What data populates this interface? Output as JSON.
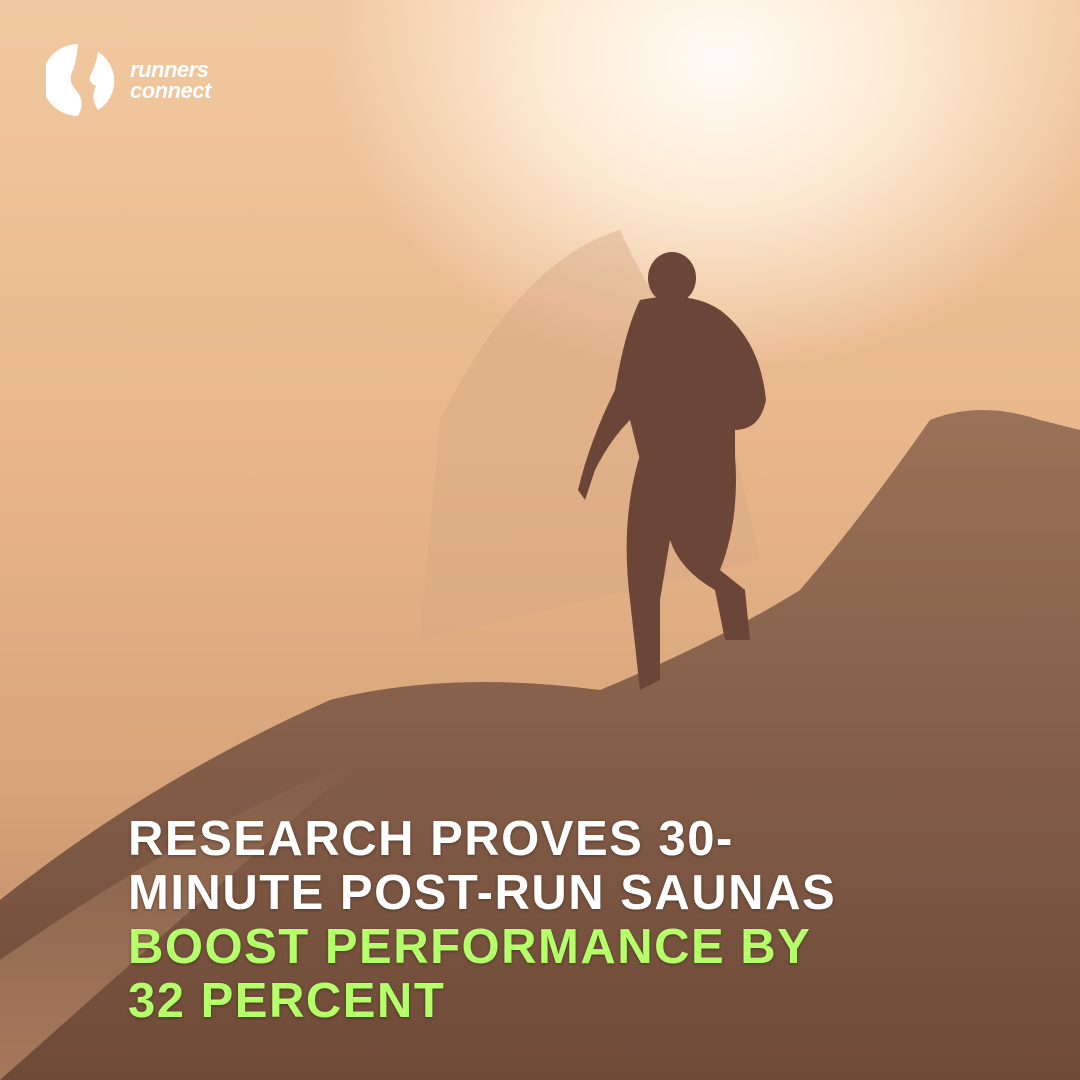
{
  "brand": {
    "name_line1": "runners",
    "name_line2": "connect",
    "icon": "runners-connect-logo-icon"
  },
  "headline": {
    "lines": [
      {
        "text": "RESEARCH PROVES 30-",
        "color": "#ffffff"
      },
      {
        "text": "MINUTE POST-RUN SAUNAS",
        "color": "#ffffff"
      },
      {
        "text": "BOOST PERFORMANCE BY",
        "color": "#b5ff6a"
      },
      {
        "text": "32 PERCENT",
        "color": "#b5ff6a"
      }
    ]
  },
  "colors": {
    "accent": "#b5ff6a",
    "text": "#ffffff"
  }
}
